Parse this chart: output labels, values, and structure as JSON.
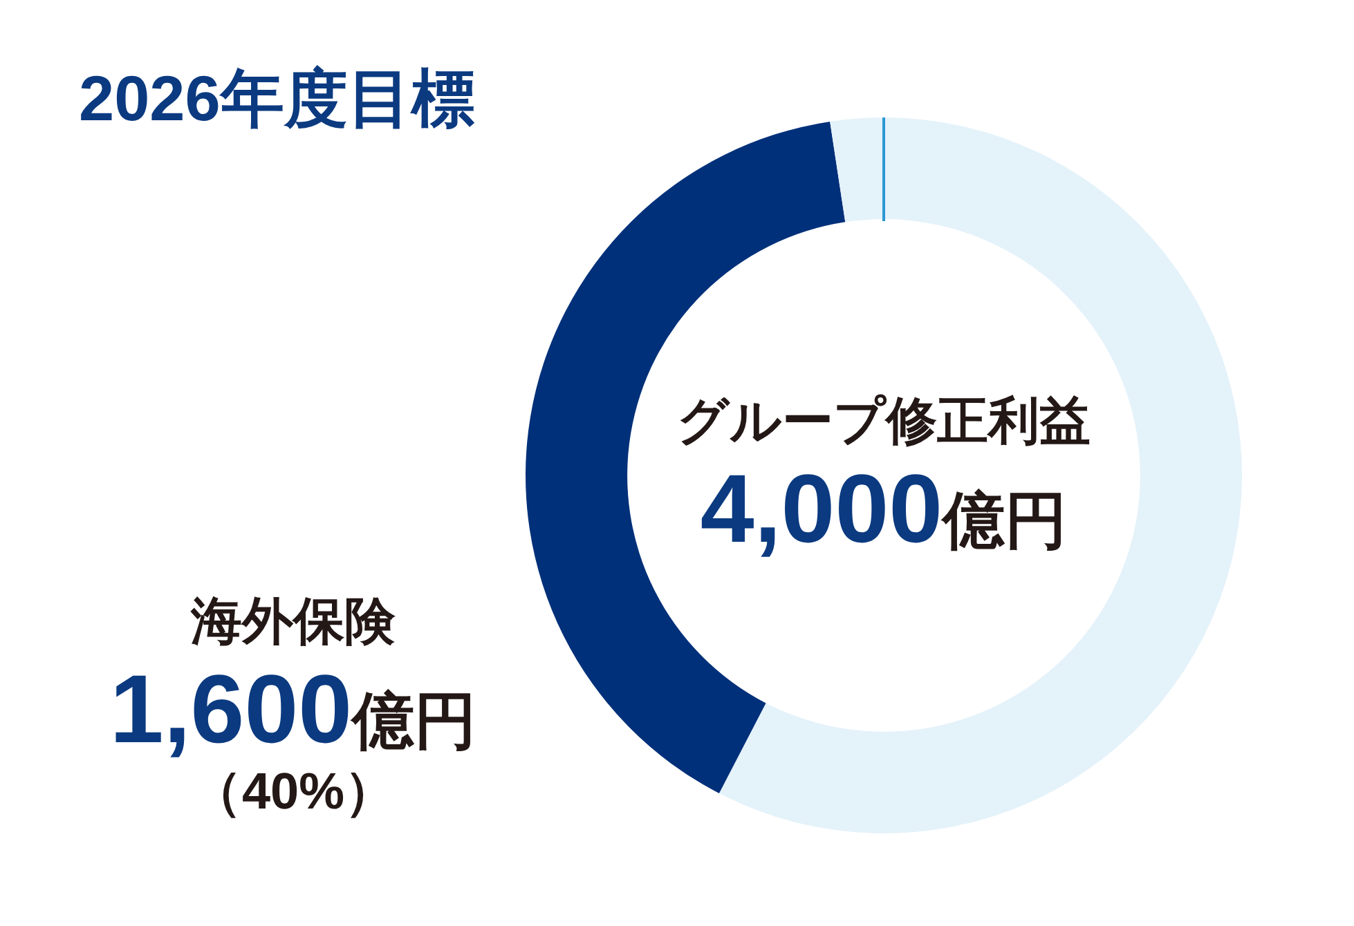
{
  "chart_data": {
    "type": "donut",
    "title": "2026年度目標",
    "categories": [
      null,
      "海外保険",
      null
    ],
    "values": [
      57.6,
      40,
      2.4
    ],
    "colors": [
      "#e4f2fa",
      "#00307a",
      "#e4f2fa"
    ],
    "value_labels": [
      null,
      "（40%）",
      null
    ],
    "annotations": [
      "グループ修正利益",
      "4,000億円",
      "1,600億円"
    ]
  }
}
